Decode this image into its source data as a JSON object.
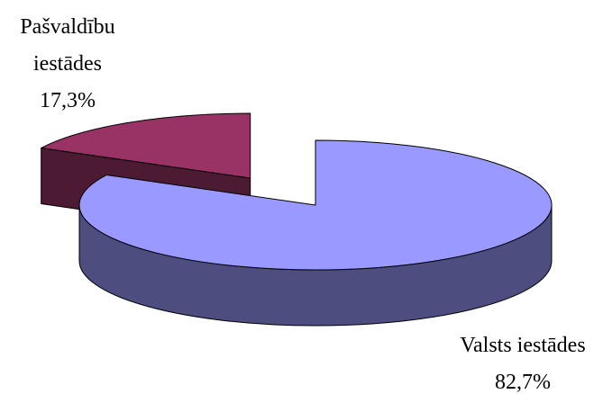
{
  "chart_data": {
    "type": "pie3d",
    "categories": [
      "Valsts iestādes",
      "Pašvaldību iestādes"
    ],
    "values": [
      82.7,
      17.3
    ],
    "value_labels": [
      "82,7%",
      "17,3%"
    ],
    "colors": [
      "#9999ff",
      "#993366"
    ],
    "explode": [
      false,
      true
    ]
  }
}
